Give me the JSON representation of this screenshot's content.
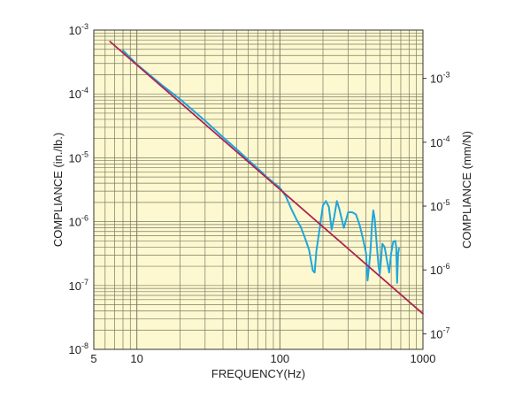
{
  "chart_data": {
    "type": "line",
    "title": "",
    "xlabel": "FREQUENCY(Hz)",
    "ylabel": "COMPLIANCE (in./lb.)",
    "y2label": "COMPLIANCE (mm/N)",
    "xscale": "log",
    "yscale": "log",
    "xlim": [
      5,
      1000
    ],
    "ylim": [
      1e-08,
      0.001
    ],
    "y2lim": [
      5.71e-08,
      0.00571
    ],
    "grid": true,
    "legend": "none",
    "x_ticks": [
      {
        "label": "5",
        "value": 5
      },
      {
        "label": "10",
        "value": 10
      },
      {
        "label": "100",
        "value": 100
      },
      {
        "label": "1000",
        "value": 1000
      }
    ],
    "y_ticks": [
      {
        "base": "10",
        "exp": "-3",
        "value": 0.001
      },
      {
        "base": "10",
        "exp": "-4",
        "value": 0.0001
      },
      {
        "base": "10",
        "exp": "-5",
        "value": 1e-05
      },
      {
        "base": "10",
        "exp": "-6",
        "value": 1e-06
      },
      {
        "base": "10",
        "exp": "-7",
        "value": 1e-07
      },
      {
        "base": "10",
        "exp": "-8",
        "value": 1e-08
      }
    ],
    "y2_ticks": [
      {
        "base": "10",
        "exp": "-3",
        "value": 0.001
      },
      {
        "base": "10",
        "exp": "-4",
        "value": 0.0001
      },
      {
        "base": "10",
        "exp": "-5",
        "value": 1e-05
      },
      {
        "base": "10",
        "exp": "-6",
        "value": 1e-06
      },
      {
        "base": "10",
        "exp": "-7",
        "value": 1e-07
      }
    ],
    "colors": {
      "background": "#fdf8cf",
      "grid": "#7a7a66",
      "frame": "#333333",
      "theoretical": "#b0234f",
      "measured": "#1fa6dc"
    },
    "series": [
      {
        "kind": "theoretical",
        "x": [
          6.5,
          1000
        ],
        "y": [
          0.00066,
          3.6e-08
        ]
      },
      {
        "kind": "measured",
        "x": [
          8,
          10,
          15,
          20,
          30,
          40,
          50,
          60,
          70,
          80,
          90,
          100,
          110,
          120,
          130,
          140,
          150,
          160,
          170,
          175,
          180,
          190,
          200,
          210,
          220,
          230,
          240,
          250,
          260,
          280,
          300,
          320,
          340,
          360,
          380,
          400,
          410,
          420,
          430,
          440,
          450,
          460,
          470,
          480,
          490,
          500,
          520,
          540,
          560,
          580,
          600,
          620,
          640,
          650,
          660,
          670,
          680
        ],
        "y": [
          0.00048,
          0.00029,
          0.000137,
          8.3e-05,
          3.8e-05,
          2.1e-05,
          1.35e-05,
          9.3e-06,
          6.8e-06,
          5.1e-06,
          4.1e-06,
          3.4e-06,
          2.5e-06,
          1.6e-06,
          1.1e-06,
          8.2e-07,
          5.5e-07,
          3.6e-07,
          1.7e-07,
          1.6e-07,
          3.5e-07,
          8e-07,
          1.8e-06,
          2.1e-06,
          1.7e-06,
          7.5e-07,
          1.2e-06,
          2.1e-06,
          1.6e-06,
          8e-07,
          1.4e-06,
          1.4e-06,
          1.3e-06,
          9e-07,
          5.5e-07,
          3.2e-07,
          1.2e-07,
          2e-07,
          3.5e-07,
          9e-07,
          1.5e-06,
          1.1e-06,
          6e-07,
          3.3e-07,
          2e-07,
          1.5e-07,
          4.5e-07,
          4e-07,
          2.5e-07,
          1.6e-07,
          3.2e-07,
          4.8e-07,
          5e-07,
          4e-07,
          1.1e-07,
          3.1e-07,
          3.8e-07
        ]
      }
    ]
  }
}
